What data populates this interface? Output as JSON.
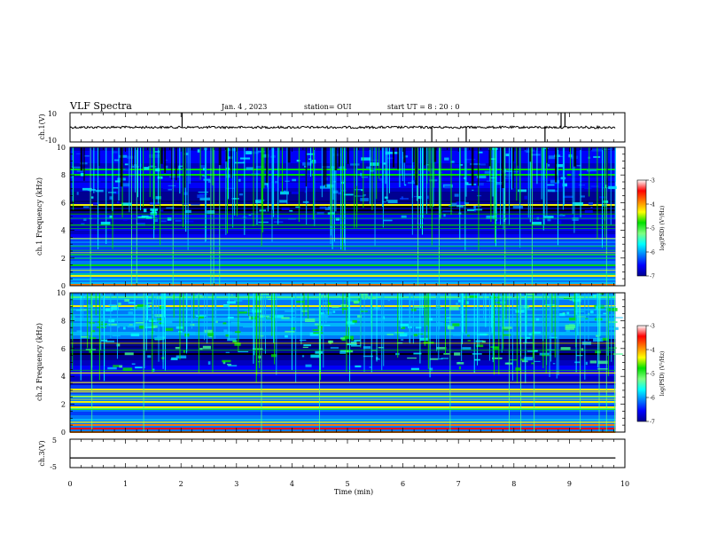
{
  "header": {
    "title": "VLF Spectra",
    "date": "Jan. 4 , 2023",
    "station": "station= OUI",
    "start": "start  UT =   8 : 20 : 0"
  },
  "colorbar": {
    "label": "log(PSD) (V²/Hz)",
    "ticks": [
      "-3",
      "-4",
      "-5",
      "-6",
      "-7"
    ],
    "colors": [
      "#000090",
      "#0000ff",
      "#0080ff",
      "#00ffff",
      "#80ff80",
      "#00e000",
      "#ffff00",
      "#ff8000",
      "#ff0000",
      "#ffffff"
    ]
  },
  "chart_data": [
    {
      "type": "line",
      "name": "ch1-waveform",
      "ylabel": "ch.1(V)",
      "ylim": [
        -10,
        10
      ],
      "yticks": [
        "10",
        "-10"
      ],
      "xlim": [
        0,
        10
      ],
      "baseline": 0,
      "x": [
        2.02,
        6.52,
        7.14,
        8.56,
        8.85,
        8.92
      ],
      "values": [
        10,
        -10,
        -10,
        -10,
        10,
        10
      ]
    },
    {
      "type": "heatmap",
      "name": "ch1-spectrogram",
      "ylabel": "ch.1\nFrequency (kHz)",
      "ylim": [
        0,
        10
      ],
      "xlim": [
        0,
        9.83
      ],
      "yticks": [
        "0",
        "2",
        "4",
        "6",
        "8",
        "10"
      ],
      "log_psd_range": [
        -7,
        -3
      ]
    },
    {
      "type": "heatmap",
      "name": "ch2-spectrogram",
      "ylabel": "ch.2\nFrequency (kHz)",
      "ylim": [
        0,
        10
      ],
      "xlim": [
        0,
        9.83
      ],
      "yticks": [
        "0",
        "2",
        "4",
        "6",
        "8",
        "10"
      ],
      "log_psd_range": [
        -7,
        -3
      ]
    },
    {
      "type": "line",
      "name": "ch3-waveform",
      "ylabel": "ch.3(V)",
      "ylim": [
        -5,
        5
      ],
      "yticks": [
        "5",
        "-5"
      ],
      "xlim": [
        0,
        9.83
      ],
      "x": [
        0,
        9.83
      ],
      "values": [
        -1.6,
        -1.6
      ]
    }
  ],
  "xaxis": {
    "label": "Time (min)",
    "ticks": [
      "0",
      "1",
      "2",
      "3",
      "4",
      "5",
      "6",
      "7",
      "8",
      "9",
      "10"
    ],
    "range": [
      0,
      10
    ]
  }
}
